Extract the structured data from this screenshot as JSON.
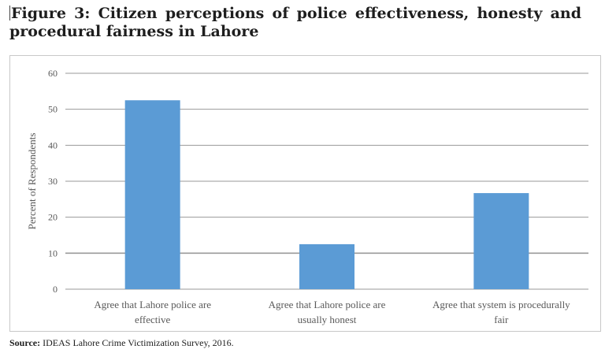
{
  "figure": {
    "title": "Figure 3: Citizen perceptions of police effectiveness, honesty and procedural fairness in Lahore",
    "source_label": "Source:",
    "source_text": "IDEAS Lahore Crime Victimization Survey, 2016."
  },
  "colors": {
    "bar": "#5b9bd5",
    "grid": "#9a9a9a",
    "text": "#595959"
  },
  "chart_data": {
    "type": "bar",
    "categories": [
      "Agree that Lahore police are effective",
      "Agree that Lahore police are usually honest",
      "Agree that system is procedurally fair"
    ],
    "category_lines": [
      [
        "Agree that Lahore police are",
        "effective"
      ],
      [
        "Agree that Lahore police are",
        "usually honest"
      ],
      [
        "Agree that system is procedurally",
        "fair"
      ]
    ],
    "values": [
      52.5,
      12.5,
      26.7
    ],
    "ylabel": "Percent of Respondents",
    "xlabel": "",
    "ylim": [
      0,
      60
    ],
    "yticks": [
      0,
      10,
      20,
      30,
      40,
      50,
      60
    ],
    "grid": true,
    "legend": "none"
  }
}
